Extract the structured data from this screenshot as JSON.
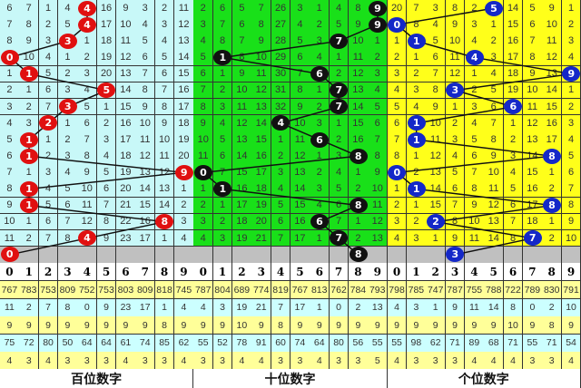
{
  "chart_data": {
    "type": "table",
    "colors": {
      "hundreds_bg": "#c8f8f8",
      "tens_bg": "#19e019",
      "ones_bg": "#ffff1a",
      "hundreds_ball": "#e01010",
      "tens_ball": "#111111",
      "ones_ball": "#1428c8",
      "stat_yellow": "#ffff99",
      "stat_cyan": "#ccffff",
      "empty_row": "#c0c0c0"
    },
    "digits": [
      "0",
      "1",
      "2",
      "3",
      "4",
      "5",
      "6",
      "7",
      "8",
      "9"
    ],
    "sections": [
      {
        "label": "百位数字",
        "balls": [
          4,
          4,
          3,
          0,
          1,
          5,
          3,
          2,
          1,
          1,
          9,
          1,
          1,
          8,
          4,
          0
        ],
        "rows": [
          [
            "6",
            "7",
            "1",
            "4",
            "4",
            "16",
            "9",
            "3",
            "2",
            "11"
          ],
          [
            "7",
            "8",
            "2",
            "5",
            "4",
            "17",
            "10",
            "4",
            "3",
            "12"
          ],
          [
            "8",
            "9",
            "3",
            "3",
            "1",
            "18",
            "11",
            "5",
            "4",
            "13"
          ],
          [
            "0",
            "10",
            "4",
            "1",
            "2",
            "19",
            "12",
            "6",
            "5",
            "14"
          ],
          [
            "1",
            "1",
            "5",
            "2",
            "3",
            "20",
            "13",
            "7",
            "6",
            "15"
          ],
          [
            "2",
            "1",
            "6",
            "3",
            "4",
            "5",
            "14",
            "8",
            "7",
            "16"
          ],
          [
            "3",
            "2",
            "7",
            "3",
            "5",
            "1",
            "15",
            "9",
            "8",
            "17"
          ],
          [
            "4",
            "3",
            "2",
            "1",
            "6",
            "2",
            "16",
            "10",
            "9",
            "18"
          ],
          [
            "5",
            "1",
            "1",
            "2",
            "7",
            "3",
            "17",
            "11",
            "10",
            "19"
          ],
          [
            "6",
            "1",
            "2",
            "3",
            "8",
            "4",
            "18",
            "12",
            "11",
            "20"
          ],
          [
            "7",
            "1",
            "3",
            "4",
            "9",
            "5",
            "19",
            "13",
            "12",
            "9"
          ],
          [
            "8",
            "1",
            "4",
            "5",
            "10",
            "6",
            "20",
            "14",
            "13",
            "1"
          ],
          [
            "9",
            "1",
            "5",
            "6",
            "11",
            "7",
            "21",
            "15",
            "14",
            "2"
          ],
          [
            "10",
            "1",
            "6",
            "7",
            "12",
            "8",
            "22",
            "16",
            "8",
            "3"
          ],
          [
            "11",
            "2",
            "7",
            "8",
            "4",
            "9",
            "23",
            "17",
            "1",
            "4"
          ],
          [
            "0",
            "",
            "",
            "",
            "",
            "",
            "",
            "",
            "",
            ""
          ]
        ],
        "stats": [
          [
            "767",
            "783",
            "753",
            "809",
            "752",
            "753",
            "803",
            "809",
            "818",
            "745"
          ],
          [
            "11",
            "2",
            "7",
            "8",
            "0",
            "9",
            "23",
            "17",
            "1",
            "4"
          ],
          [
            "9",
            "9",
            "9",
            "9",
            "9",
            "9",
            "9",
            "9",
            "8",
            "9"
          ],
          [
            "75",
            "72",
            "80",
            "50",
            "64",
            "64",
            "61",
            "74",
            "85",
            "62"
          ],
          [
            "4",
            "3",
            "4",
            "3",
            "3",
            "3",
            "4",
            "3",
            "3",
            "4"
          ]
        ]
      },
      {
        "label": "十位数字",
        "balls": [
          9,
          9,
          7,
          1,
          6,
          7,
          7,
          4,
          6,
          8,
          0,
          1,
          8,
          6,
          7,
          8
        ],
        "rows": [
          [
            "2",
            "6",
            "5",
            "7",
            "26",
            "3",
            "1",
            "4",
            "8",
            "9"
          ],
          [
            "3",
            "7",
            "6",
            "8",
            "27",
            "4",
            "2",
            "5",
            "9",
            "9"
          ],
          [
            "4",
            "8",
            "7",
            "9",
            "28",
            "5",
            "3",
            "7",
            "10",
            "1"
          ],
          [
            "5",
            "1",
            "8",
            "10",
            "29",
            "6",
            "4",
            "1",
            "11",
            "2"
          ],
          [
            "6",
            "1",
            "9",
            "11",
            "30",
            "7",
            "6",
            "2",
            "12",
            "3"
          ],
          [
            "7",
            "2",
            "10",
            "12",
            "31",
            "8",
            "1",
            "7",
            "13",
            "4"
          ],
          [
            "8",
            "3",
            "11",
            "13",
            "32",
            "9",
            "2",
            "7",
            "14",
            "5"
          ],
          [
            "9",
            "4",
            "12",
            "14",
            "4",
            "10",
            "3",
            "1",
            "15",
            "6"
          ],
          [
            "10",
            "5",
            "13",
            "15",
            "1",
            "11",
            "6",
            "2",
            "16",
            "7"
          ],
          [
            "11",
            "6",
            "14",
            "16",
            "2",
            "12",
            "1",
            "3",
            "8",
            "8"
          ],
          [
            "0",
            "7",
            "15",
            "17",
            "3",
            "13",
            "2",
            "4",
            "1",
            "9"
          ],
          [
            "1",
            "1",
            "16",
            "18",
            "4",
            "14",
            "3",
            "5",
            "2",
            "10"
          ],
          [
            "2",
            "1",
            "17",
            "19",
            "5",
            "15",
            "4",
            "6",
            "8",
            "11"
          ],
          [
            "3",
            "2",
            "18",
            "20",
            "6",
            "16",
            "6",
            "7",
            "1",
            "12"
          ],
          [
            "4",
            "3",
            "19",
            "21",
            "7",
            "17",
            "1",
            "7",
            "2",
            "13"
          ],
          [
            "",
            "",
            "",
            "",
            "",
            "",
            "",
            "",
            "8",
            ""
          ]
        ],
        "stats": [
          [
            "787",
            "804",
            "689",
            "774",
            "819",
            "767",
            "813",
            "762",
            "784",
            "793"
          ],
          [
            "4",
            "3",
            "19",
            "21",
            "7",
            "17",
            "1",
            "0",
            "2",
            "13"
          ],
          [
            "9",
            "9",
            "10",
            "9",
            "8",
            "9",
            "9",
            "9",
            "9",
            "9"
          ],
          [
            "55",
            "52",
            "78",
            "91",
            "60",
            "74",
            "64",
            "80",
            "56",
            "55"
          ],
          [
            "3",
            "3",
            "4",
            "4",
            "3",
            "3",
            "4",
            "3",
            "3",
            "5"
          ]
        ]
      },
      {
        "label": "个位数字",
        "balls": [
          5,
          0,
          1,
          4,
          9,
          3,
          6,
          1,
          1,
          8,
          0,
          1,
          8,
          2,
          7,
          3
        ],
        "rows": [
          [
            "20",
            "7",
            "3",
            "8",
            "2",
            "5",
            "14",
            "5",
            "9",
            "1"
          ],
          [
            "0",
            "8",
            "4",
            "9",
            "3",
            "1",
            "15",
            "6",
            "10",
            "2"
          ],
          [
            "1",
            "1",
            "5",
            "10",
            "4",
            "2",
            "16",
            "7",
            "11",
            "3"
          ],
          [
            "2",
            "1",
            "6",
            "11",
            "4",
            "3",
            "17",
            "8",
            "12",
            "4"
          ],
          [
            "3",
            "2",
            "7",
            "12",
            "1",
            "4",
            "18",
            "9",
            "13",
            "9"
          ],
          [
            "4",
            "3",
            "8",
            "3",
            "2",
            "5",
            "19",
            "10",
            "14",
            "1"
          ],
          [
            "5",
            "4",
            "9",
            "1",
            "3",
            "6",
            "6",
            "11",
            "15",
            "2"
          ],
          [
            "6",
            "1",
            "10",
            "2",
            "4",
            "7",
            "1",
            "12",
            "16",
            "3"
          ],
          [
            "7",
            "1",
            "11",
            "3",
            "5",
            "8",
            "2",
            "13",
            "17",
            "4"
          ],
          [
            "8",
            "1",
            "12",
            "4",
            "6",
            "9",
            "3",
            "14",
            "8",
            "5"
          ],
          [
            "0",
            "2",
            "13",
            "5",
            "7",
            "10",
            "4",
            "15",
            "1",
            "6"
          ],
          [
            "1",
            "1",
            "14",
            "6",
            "8",
            "11",
            "5",
            "16",
            "2",
            "7"
          ],
          [
            "2",
            "1",
            "15",
            "7",
            "9",
            "12",
            "6",
            "17",
            "8",
            "8"
          ],
          [
            "3",
            "2",
            "2",
            "8",
            "10",
            "13",
            "7",
            "18",
            "1",
            "9"
          ],
          [
            "4",
            "3",
            "1",
            "9",
            "11",
            "14",
            "8",
            "7",
            "2",
            "10"
          ],
          [
            "",
            "",
            "",
            "3",
            "",
            "",
            "",
            "",
            "",
            ""
          ]
        ],
        "stats": [
          [
            "798",
            "785",
            "747",
            "787",
            "755",
            "788",
            "722",
            "789",
            "830",
            "791"
          ],
          [
            "4",
            "3",
            "1",
            "9",
            "11",
            "14",
            "8",
            "0",
            "2",
            "10"
          ],
          [
            "9",
            "9",
            "9",
            "9",
            "9",
            "9",
            "10",
            "9",
            "8",
            "9"
          ],
          [
            "55",
            "98",
            "62",
            "71",
            "89",
            "68",
            "71",
            "55",
            "71",
            "54"
          ],
          [
            "4",
            "3",
            "3",
            "3",
            "4",
            "4",
            "4",
            "3",
            "3",
            "4"
          ]
        ]
      }
    ]
  }
}
